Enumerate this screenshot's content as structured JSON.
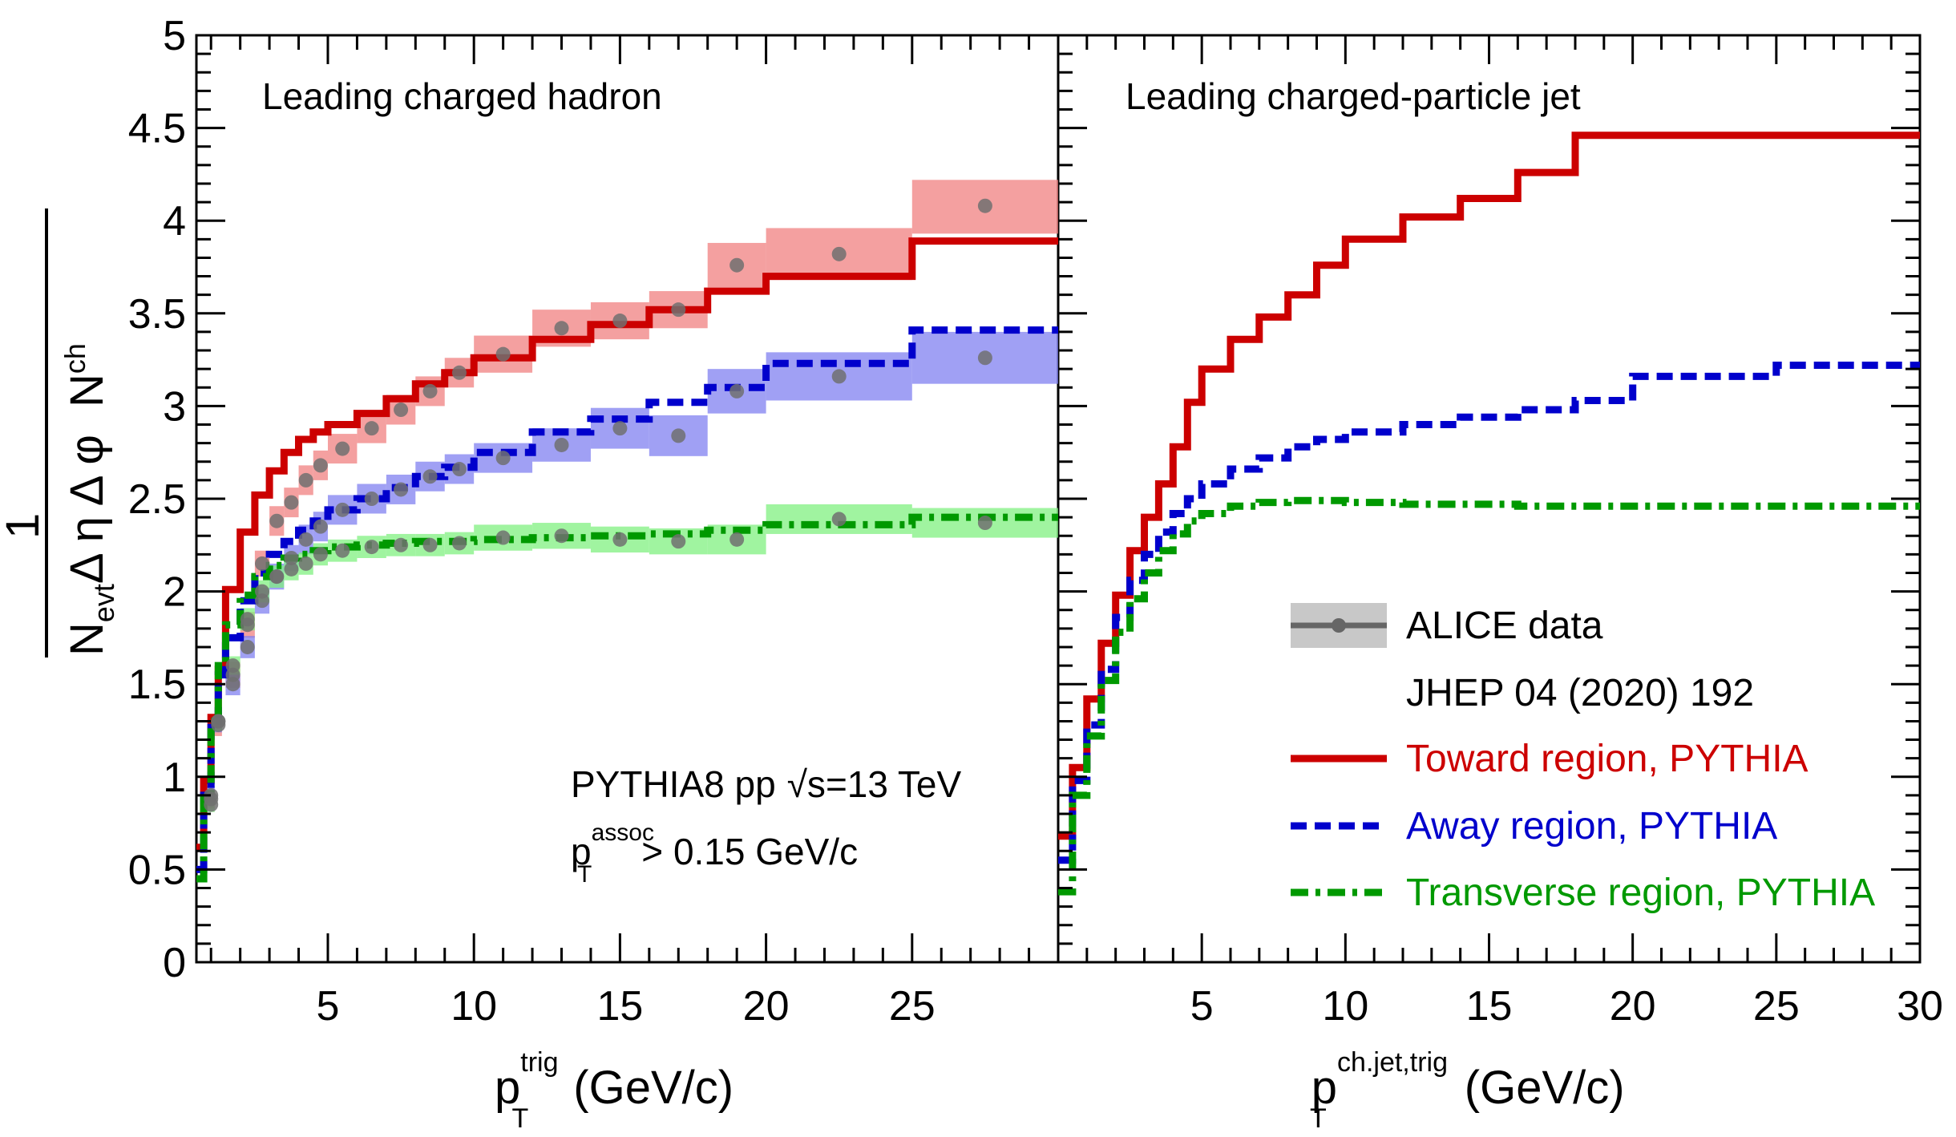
{
  "chart_data": [
    {
      "type": "line",
      "title": "Leading charged hadron",
      "xlabel": "p_T^trig (GeV/c)",
      "xlabel_main": "p",
      "xlabel_sub": "T",
      "xlabel_sup": "trig",
      "xlabel_unit": "(GeV/c)",
      "ylabel": "1/(N_evt Δη Δφ) N_ch",
      "ylabel_num": "1",
      "ylabel_den": "N",
      "ylabel_den_sub": "evt",
      "ylabel_den_rest": "Δ η Δ φ",
      "ylabel_rhs": "N",
      "ylabel_rhs_sub": "ch",
      "xlim": [
        0.5,
        30
      ],
      "ylim": [
        0,
        5
      ],
      "xticks": [
        "5",
        "10",
        "15",
        "20",
        "25"
      ],
      "xtick_values": [
        5,
        10,
        15,
        20,
        25
      ],
      "yticks": [
        "0",
        "0.5",
        "1",
        "1.5",
        "2",
        "2.5",
        "3",
        "3.5",
        "4",
        "4.5",
        "5"
      ],
      "ytick_values": [
        0,
        0.5,
        1,
        1.5,
        2,
        2.5,
        3,
        3.5,
        4,
        4.5,
        5
      ],
      "annotation_1": "PYTHIA8 pp",
      "annotation_sqrt": "√s",
      "annotation_energy": "=13 TeV",
      "annotation_2_main": "p",
      "annotation_2_sub": "T",
      "annotation_2_sup": "assoc",
      "annotation_2_rest": "> 0.15 GeV/c",
      "data_series": [
        {
          "name": "ALICE data Toward",
          "color": "#f08080",
          "x": [
            1.0,
            1.25,
            1.75,
            2.25,
            2.75,
            3.25,
            3.75,
            4.25,
            4.75,
            5.5,
            6.5,
            7.5,
            8.5,
            9.5,
            11.0,
            13.0,
            15.0,
            17.0,
            19.0,
            22.5,
            27.5
          ],
          "y": [
            0.88,
            1.28,
            1.55,
            1.82,
            2.15,
            2.38,
            2.48,
            2.6,
            2.68,
            2.77,
            2.88,
            2.98,
            3.08,
            3.18,
            3.28,
            3.42,
            3.46,
            3.52,
            3.76,
            3.82,
            4.08
          ],
          "band_low": [
            0.83,
            1.22,
            1.48,
            1.75,
            2.08,
            2.3,
            2.4,
            2.52,
            2.6,
            2.69,
            2.8,
            2.9,
            3.0,
            3.1,
            3.18,
            3.32,
            3.36,
            3.42,
            3.64,
            3.68,
            3.93
          ],
          "band_high": [
            0.93,
            1.34,
            1.62,
            1.89,
            2.22,
            2.46,
            2.56,
            2.68,
            2.76,
            2.85,
            2.96,
            3.06,
            3.16,
            3.26,
            3.38,
            3.52,
            3.56,
            3.62,
            3.88,
            3.96,
            4.22
          ],
          "x_low": [
            0.875,
            1.125,
            1.5,
            2.0,
            2.5,
            3.0,
            3.5,
            4.0,
            4.5,
            5.0,
            6.0,
            7.0,
            8.0,
            9.0,
            10.0,
            12.0,
            14.0,
            16.0,
            18.0,
            20.0,
            25.0
          ],
          "x_high": [
            1.125,
            1.375,
            2.0,
            2.5,
            3.0,
            3.5,
            4.0,
            4.5,
            5.0,
            6.0,
            7.0,
            8.0,
            9.0,
            10.0,
            12.0,
            14.0,
            16.0,
            18.0,
            20.0,
            25.0,
            30.0
          ]
        },
        {
          "name": "ALICE data Away",
          "color": "#8080f0",
          "x": [
            1.0,
            1.25,
            1.75,
            2.25,
            2.75,
            3.25,
            3.75,
            4.25,
            4.75,
            5.5,
            6.5,
            7.5,
            8.5,
            9.5,
            11.0,
            13.0,
            15.0,
            17.0,
            19.0,
            22.5,
            27.5
          ],
          "y": [
            0.9,
            1.3,
            1.5,
            1.7,
            1.95,
            2.08,
            2.18,
            2.28,
            2.35,
            2.44,
            2.5,
            2.55,
            2.62,
            2.66,
            2.72,
            2.79,
            2.88,
            2.84,
            3.08,
            3.16,
            3.26
          ],
          "band_low": [
            0.85,
            1.24,
            1.44,
            1.64,
            1.88,
            2.01,
            2.11,
            2.2,
            2.27,
            2.36,
            2.42,
            2.47,
            2.54,
            2.58,
            2.64,
            2.7,
            2.77,
            2.73,
            2.96,
            3.03,
            3.12
          ],
          "band_high": [
            0.95,
            1.36,
            1.56,
            1.76,
            2.02,
            2.15,
            2.25,
            2.36,
            2.43,
            2.52,
            2.58,
            2.63,
            2.7,
            2.74,
            2.8,
            2.88,
            2.99,
            2.95,
            3.2,
            3.29,
            3.4
          ],
          "x_low": [
            0.875,
            1.125,
            1.5,
            2.0,
            2.5,
            3.0,
            3.5,
            4.0,
            4.5,
            5.0,
            6.0,
            7.0,
            8.0,
            9.0,
            10.0,
            12.0,
            14.0,
            16.0,
            18.0,
            20.0,
            25.0
          ],
          "x_high": [
            1.125,
            1.375,
            2.0,
            2.5,
            3.0,
            3.5,
            4.0,
            4.5,
            5.0,
            6.0,
            7.0,
            8.0,
            9.0,
            10.0,
            12.0,
            14.0,
            16.0,
            18.0,
            20.0,
            25.0,
            30.0
          ]
        },
        {
          "name": "ALICE data Transverse",
          "color": "#80f080",
          "x": [
            1.0,
            1.25,
            1.75,
            2.25,
            2.75,
            3.25,
            3.75,
            4.25,
            4.75,
            5.5,
            6.5,
            7.5,
            8.5,
            9.5,
            11.0,
            13.0,
            15.0,
            17.0,
            19.0,
            22.5,
            27.5
          ],
          "y": [
            0.85,
            1.3,
            1.6,
            1.85,
            2.0,
            2.08,
            2.12,
            2.15,
            2.2,
            2.22,
            2.24,
            2.25,
            2.25,
            2.26,
            2.29,
            2.3,
            2.28,
            2.27,
            2.28,
            2.39,
            2.37
          ],
          "band_low": [
            0.81,
            1.25,
            1.55,
            1.79,
            1.94,
            2.02,
            2.06,
            2.09,
            2.14,
            2.16,
            2.18,
            2.19,
            2.19,
            2.2,
            2.22,
            2.23,
            2.21,
            2.2,
            2.2,
            2.31,
            2.29
          ],
          "band_high": [
            0.89,
            1.35,
            1.65,
            1.91,
            2.06,
            2.14,
            2.18,
            2.21,
            2.26,
            2.28,
            2.3,
            2.31,
            2.31,
            2.32,
            2.36,
            2.37,
            2.35,
            2.34,
            2.36,
            2.47,
            2.45
          ],
          "x_low": [
            0.875,
            1.125,
            1.5,
            2.0,
            2.5,
            3.0,
            3.5,
            4.0,
            4.5,
            5.0,
            6.0,
            7.0,
            8.0,
            9.0,
            10.0,
            12.0,
            14.0,
            16.0,
            18.0,
            20.0,
            25.0
          ],
          "x_high": [
            1.125,
            1.375,
            2.0,
            2.5,
            3.0,
            3.5,
            4.0,
            4.5,
            5.0,
            6.0,
            7.0,
            8.0,
            9.0,
            10.0,
            12.0,
            14.0,
            16.0,
            18.0,
            20.0,
            25.0,
            30.0
          ]
        }
      ],
      "model_series": [
        {
          "name": "Toward region, PYTHIA",
          "color": "#cc0000",
          "style": "solid",
          "edges": [
            0.5,
            0.75,
            1.0,
            1.25,
            1.5,
            2.0,
            2.5,
            3.0,
            3.5,
            4.0,
            4.5,
            5.0,
            6.0,
            7.0,
            8.0,
            9.0,
            10.0,
            12.0,
            14.0,
            16.0,
            18.0,
            20.0,
            25.0,
            30.0
          ],
          "values": [
            0.62,
            0.98,
            1.32,
            1.58,
            2.01,
            2.32,
            2.52,
            2.65,
            2.75,
            2.82,
            2.86,
            2.9,
            2.96,
            3.04,
            3.12,
            3.18,
            3.26,
            3.36,
            3.44,
            3.52,
            3.62,
            3.7,
            3.89
          ]
        },
        {
          "name": "Away region, PYTHIA",
          "color": "#0000cc",
          "style": "dashed",
          "edges": [
            0.5,
            0.75,
            1.0,
            1.25,
            1.5,
            2.0,
            2.5,
            3.0,
            3.5,
            4.0,
            4.5,
            5.0,
            6.0,
            7.0,
            8.0,
            9.0,
            10.0,
            12.0,
            14.0,
            16.0,
            18.0,
            20.0,
            25.0,
            30.0
          ],
          "values": [
            0.5,
            0.9,
            1.3,
            1.55,
            1.75,
            1.95,
            2.1,
            2.2,
            2.27,
            2.33,
            2.38,
            2.44,
            2.5,
            2.56,
            2.62,
            2.67,
            2.75,
            2.86,
            2.93,
            3.02,
            3.1,
            3.23,
            3.41
          ]
        },
        {
          "name": "Transverse region, PYTHIA",
          "color": "#009900",
          "style": "dashdot",
          "edges": [
            0.5,
            0.75,
            1.0,
            1.25,
            1.5,
            2.0,
            2.5,
            3.0,
            3.5,
            4.0,
            4.5,
            5.0,
            6.0,
            7.0,
            8.0,
            9.0,
            10.0,
            12.0,
            14.0,
            16.0,
            18.0,
            20.0,
            25.0,
            30.0
          ],
          "values": [
            0.45,
            0.88,
            1.3,
            1.6,
            1.82,
            1.98,
            2.08,
            2.14,
            2.18,
            2.2,
            2.22,
            2.24,
            2.25,
            2.26,
            2.27,
            2.27,
            2.28,
            2.29,
            2.3,
            2.31,
            2.33,
            2.36,
            2.4
          ]
        }
      ]
    },
    {
      "type": "line",
      "title": "Leading charged-particle jet",
      "xlabel": "p_T^ch.jet,trig (GeV/c)",
      "xlabel_main": "p",
      "xlabel_sub": "T",
      "xlabel_sup": "ch.jet,trig",
      "xlabel_unit": "(GeV/c)",
      "xlim": [
        0,
        30
      ],
      "ylim": [
        0,
        5
      ],
      "xticks": [
        "5",
        "10",
        "15",
        "20",
        "25",
        "30"
      ],
      "xtick_values": [
        5,
        10,
        15,
        20,
        25,
        30
      ],
      "model_series": [
        {
          "name": "Toward region, PYTHIA",
          "color": "#cc0000",
          "style": "solid",
          "edges": [
            0.0,
            0.5,
            1.0,
            1.5,
            2.0,
            2.5,
            3.0,
            3.5,
            4.0,
            4.5,
            5.0,
            6.0,
            7.0,
            8.0,
            9.0,
            10.0,
            12.0,
            14.0,
            16.0,
            18.0,
            20.0,
            25.0,
            30.0
          ],
          "values": [
            0.68,
            1.05,
            1.42,
            1.72,
            1.98,
            2.22,
            2.4,
            2.58,
            2.78,
            3.02,
            3.2,
            3.36,
            3.48,
            3.6,
            3.76,
            3.9,
            4.02,
            4.12,
            4.26,
            4.46,
            4.46,
            4.46
          ]
        },
        {
          "name": "Away region, PYTHIA",
          "color": "#0000cc",
          "style": "dashed",
          "edges": [
            0.0,
            0.5,
            1.0,
            1.5,
            2.0,
            2.5,
            3.0,
            3.5,
            4.0,
            4.5,
            5.0,
            6.0,
            7.0,
            8.0,
            9.0,
            10.0,
            12.0,
            14.0,
            16.0,
            18.0,
            20.0,
            25.0,
            30.0
          ],
          "values": [
            0.55,
            0.98,
            1.28,
            1.58,
            1.86,
            2.06,
            2.2,
            2.32,
            2.42,
            2.5,
            2.58,
            2.66,
            2.72,
            2.78,
            2.82,
            2.86,
            2.9,
            2.94,
            2.98,
            3.03,
            3.16,
            3.22
          ]
        },
        {
          "name": "Transverse region, PYTHIA",
          "color": "#009900",
          "style": "dashdot",
          "edges": [
            0.0,
            0.5,
            1.0,
            1.5,
            2.0,
            2.5,
            3.0,
            3.5,
            4.0,
            4.5,
            5.0,
            6.0,
            7.0,
            8.0,
            9.0,
            10.0,
            12.0,
            14.0,
            16.0,
            18.0,
            20.0,
            25.0,
            30.0
          ],
          "values": [
            0.38,
            0.9,
            1.22,
            1.52,
            1.78,
            1.96,
            2.1,
            2.22,
            2.31,
            2.38,
            2.42,
            2.46,
            2.48,
            2.49,
            2.49,
            2.48,
            2.47,
            2.47,
            2.46,
            2.46,
            2.46,
            2.46
          ]
        }
      ]
    }
  ],
  "legend": {
    "placement": "bottom-right of right panel",
    "data_label": "ALICE data",
    "data_reference": "JHEP 04 (2020) 192",
    "toward_label": "Toward region, PYTHIA",
    "away_label": "Away region, PYTHIA",
    "transverse_label": "Transverse region, PYTHIA",
    "toward_color": "#cc0000",
    "away_color": "#0000cc",
    "transverse_color": "#009900"
  }
}
